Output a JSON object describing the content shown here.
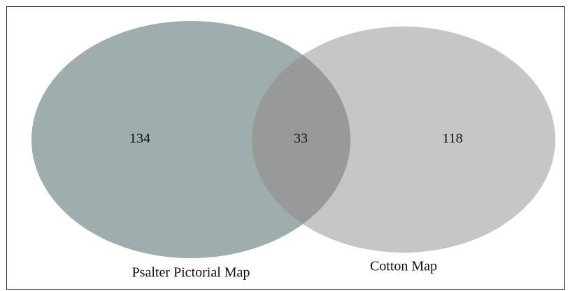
{
  "chart_data": {
    "type": "venn",
    "sets": [
      {
        "name": "Psalter Pictorial Map",
        "color": "#9eaeae",
        "only": 134
      },
      {
        "name": "Cotton Map",
        "color": "#c6c6c6",
        "only": 118
      }
    ],
    "intersection": 33,
    "intersection_color": "#979a99"
  }
}
